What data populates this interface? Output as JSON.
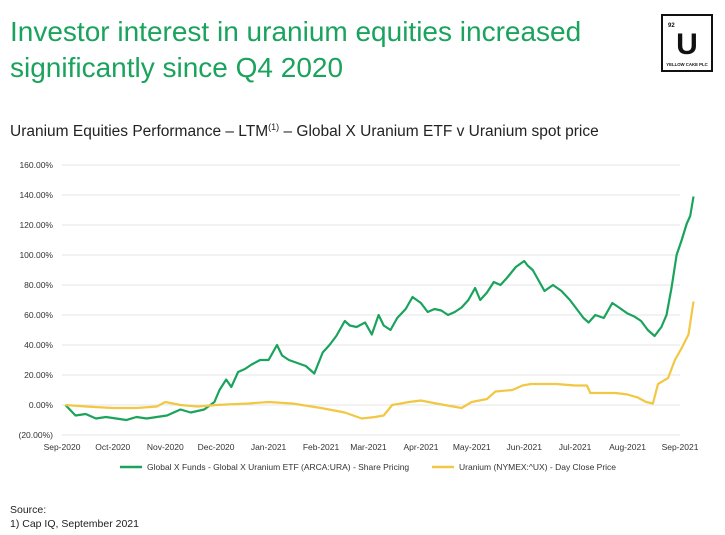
{
  "headline": {
    "line1": "Investor interest in uranium equities increased",
    "line2": "significantly since Q4 2020"
  },
  "logo": {
    "number": "92",
    "letter": "U",
    "text": "YELLOW CAKE PLC"
  },
  "subtitle": {
    "before": "Uranium Equities Performance – LTM",
    "superscript": "(1)",
    "after": " – Global X Uranium ETF v Uranium spot price"
  },
  "source": {
    "label": "Source:",
    "note": "1)  Cap IQ, September 2021"
  },
  "colors": {
    "green": "#1aa35c",
    "gold": "#f2c744",
    "grid": "#e4e4e4",
    "text": "#333333"
  },
  "chart_data": {
    "type": "line",
    "title": "",
    "xlabel": "",
    "ylabel": "",
    "ylim": [
      -20,
      160
    ],
    "y_ticks": [
      -20,
      0,
      20,
      40,
      60,
      80,
      100,
      120,
      140,
      160
    ],
    "y_tick_labels": [
      "(20.00%)",
      "0.00%",
      "20.00%",
      "40.00%",
      "60.00%",
      "80.00%",
      "100.00%",
      "120.00%",
      "140.00%",
      "160.00%"
    ],
    "x_ticks": [
      "2020-09-01",
      "2020-10-01",
      "2020-11-01",
      "2020-12-01",
      "2021-01-01",
      "2021-02-01",
      "2021-03-01",
      "2021-04-01",
      "2021-05-01",
      "2021-06-01",
      "2021-07-01",
      "2021-08-01",
      "2021-09-01"
    ],
    "x_tick_labels": [
      "Sep-2020",
      "Oct-2020",
      "Nov-2020",
      "Dec-2020",
      "Jan-2021",
      "Feb-2021",
      "Mar-2021",
      "Apr-2021",
      "May-2021",
      "Jun-2021",
      "Jul-2021",
      "Aug-2021",
      "Sep-2021"
    ],
    "grid": "horizontal",
    "legend_position": "bottom",
    "series": [
      {
        "name": "Global X Funds - Global X Uranium ETF (ARCA:URA) - Share Pricing",
        "color": "#1aa35c",
        "points": [
          [
            "2020-09-03",
            0
          ],
          [
            "2020-09-09",
            -7
          ],
          [
            "2020-09-15",
            -6
          ],
          [
            "2020-09-21",
            -9
          ],
          [
            "2020-09-27",
            -8
          ],
          [
            "2020-10-03",
            -9
          ],
          [
            "2020-10-09",
            -10
          ],
          [
            "2020-10-15",
            -8
          ],
          [
            "2020-10-21",
            -9
          ],
          [
            "2020-10-27",
            -8
          ],
          [
            "2020-11-02",
            -7
          ],
          [
            "2020-11-06",
            -5
          ],
          [
            "2020-11-10",
            -3
          ],
          [
            "2020-11-16",
            -5
          ],
          [
            "2020-11-24",
            -3
          ],
          [
            "2020-11-30",
            2
          ],
          [
            "2020-12-03",
            10
          ],
          [
            "2020-12-07",
            17
          ],
          [
            "2020-12-10",
            12
          ],
          [
            "2020-12-14",
            22
          ],
          [
            "2020-12-18",
            24
          ],
          [
            "2020-12-22",
            27
          ],
          [
            "2020-12-27",
            30
          ],
          [
            "2021-01-01",
            30
          ],
          [
            "2021-01-06",
            40
          ],
          [
            "2021-01-09",
            33
          ],
          [
            "2021-01-13",
            30
          ],
          [
            "2021-01-18",
            28
          ],
          [
            "2021-01-23",
            26
          ],
          [
            "2021-01-28",
            21
          ],
          [
            "2021-02-02",
            35
          ],
          [
            "2021-02-06",
            40
          ],
          [
            "2021-02-10",
            46
          ],
          [
            "2021-02-15",
            56
          ],
          [
            "2021-02-18",
            53
          ],
          [
            "2021-02-22",
            52
          ],
          [
            "2021-02-27",
            55
          ],
          [
            "2021-03-03",
            47
          ],
          [
            "2021-03-07",
            60
          ],
          [
            "2021-03-10",
            53
          ],
          [
            "2021-03-14",
            50
          ],
          [
            "2021-03-18",
            58
          ],
          [
            "2021-03-23",
            64
          ],
          [
            "2021-03-27",
            72
          ],
          [
            "2021-04-01",
            68
          ],
          [
            "2021-04-05",
            62
          ],
          [
            "2021-04-09",
            64
          ],
          [
            "2021-04-13",
            63
          ],
          [
            "2021-04-17",
            60
          ],
          [
            "2021-04-21",
            62
          ],
          [
            "2021-04-25",
            65
          ],
          [
            "2021-04-29",
            70
          ],
          [
            "2021-05-03",
            78
          ],
          [
            "2021-05-06",
            70
          ],
          [
            "2021-05-10",
            75
          ],
          [
            "2021-05-14",
            82
          ],
          [
            "2021-05-18",
            80
          ],
          [
            "2021-05-22",
            85
          ],
          [
            "2021-05-27",
            92
          ],
          [
            "2021-06-01",
            96
          ],
          [
            "2021-06-03",
            93
          ],
          [
            "2021-06-06",
            90
          ],
          [
            "2021-06-09",
            84
          ],
          [
            "2021-06-13",
            76
          ],
          [
            "2021-06-18",
            80
          ],
          [
            "2021-06-23",
            76
          ],
          [
            "2021-06-28",
            70
          ],
          [
            "2021-07-02",
            64
          ],
          [
            "2021-07-06",
            58
          ],
          [
            "2021-07-09",
            55
          ],
          [
            "2021-07-13",
            60
          ],
          [
            "2021-07-18",
            58
          ],
          [
            "2021-07-23",
            68
          ],
          [
            "2021-07-27",
            65
          ],
          [
            "2021-08-01",
            61
          ],
          [
            "2021-08-05",
            59
          ],
          [
            "2021-08-09",
            56
          ],
          [
            "2021-08-13",
            50
          ],
          [
            "2021-08-17",
            46
          ],
          [
            "2021-08-21",
            52
          ],
          [
            "2021-08-24",
            60
          ],
          [
            "2021-08-27",
            78
          ],
          [
            "2021-08-30",
            100
          ],
          [
            "2021-09-02",
            110
          ],
          [
            "2021-09-05",
            121
          ],
          [
            "2021-09-07",
            126
          ],
          [
            "2021-09-09",
            139
          ]
        ]
      },
      {
        "name": "Uranium (NYMEX:^UX) - Day Close Price",
        "color": "#f2c744",
        "points": [
          [
            "2020-09-03",
            0
          ],
          [
            "2020-09-15",
            -1
          ],
          [
            "2020-10-01",
            -2
          ],
          [
            "2020-10-15",
            -2
          ],
          [
            "2020-10-27",
            -1
          ],
          [
            "2020-11-01",
            2
          ],
          [
            "2020-11-10",
            0
          ],
          [
            "2020-11-20",
            -1
          ],
          [
            "2020-12-01",
            0
          ],
          [
            "2020-12-20",
            1
          ],
          [
            "2021-01-01",
            2
          ],
          [
            "2021-01-15",
            1
          ],
          [
            "2021-02-01",
            -2
          ],
          [
            "2021-02-15",
            -5
          ],
          [
            "2021-02-25",
            -9
          ],
          [
            "2021-03-05",
            -8
          ],
          [
            "2021-03-10",
            -7
          ],
          [
            "2021-03-15",
            0
          ],
          [
            "2021-03-25",
            2
          ],
          [
            "2021-04-01",
            3
          ],
          [
            "2021-04-10",
            1
          ],
          [
            "2021-04-20",
            -1
          ],
          [
            "2021-04-25",
            -2
          ],
          [
            "2021-05-01",
            2
          ],
          [
            "2021-05-10",
            4
          ],
          [
            "2021-05-15",
            9
          ],
          [
            "2021-05-25",
            10
          ],
          [
            "2021-05-31",
            13
          ],
          [
            "2021-06-05",
            14
          ],
          [
            "2021-06-20",
            14
          ],
          [
            "2021-07-01",
            13
          ],
          [
            "2021-07-08",
            13
          ],
          [
            "2021-07-10",
            8
          ],
          [
            "2021-07-25",
            8
          ],
          [
            "2021-08-01",
            7
          ],
          [
            "2021-08-07",
            5
          ],
          [
            "2021-08-12",
            2
          ],
          [
            "2021-08-16",
            1
          ],
          [
            "2021-08-19",
            14
          ],
          [
            "2021-08-25",
            18
          ],
          [
            "2021-08-29",
            30
          ],
          [
            "2021-09-02",
            38
          ],
          [
            "2021-09-06",
            47
          ],
          [
            "2021-09-09",
            69
          ]
        ]
      }
    ]
  }
}
